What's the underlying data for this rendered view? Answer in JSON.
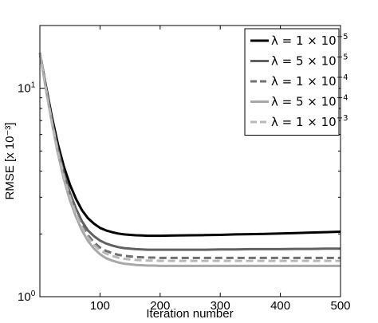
{
  "chart_data": {
    "type": "line",
    "xlabel": "Iteration number",
    "ylabel": "RMSE [x 10⁻³]",
    "xlim": [
      0,
      500
    ],
    "ylim": [
      1,
      20
    ],
    "yscale": "log",
    "grid": false,
    "legend_position": "top-right",
    "x_ticks": [
      100,
      200,
      300,
      400,
      500
    ],
    "x_tick_labels": [
      "100",
      "200",
      "300",
      "400",
      "500"
    ],
    "y_ticks": [
      1,
      10
    ],
    "y_tick_labels": [
      {
        "base": "10",
        "exp": "0"
      },
      {
        "base": "10",
        "exp": "1"
      }
    ],
    "x": [
      0,
      10,
      20,
      30,
      40,
      50,
      60,
      70,
      80,
      90,
      100,
      110,
      120,
      130,
      140,
      150,
      160,
      170,
      180,
      190,
      200,
      225,
      250,
      275,
      300,
      325,
      350,
      375,
      400,
      425,
      450,
      475,
      500
    ],
    "series": [
      {
        "name_base": "λ = 1 × 10",
        "name_exp": "−5",
        "color": "#000000",
        "dash": "",
        "values": [
          14.8,
          10.3,
          7.3,
          5.4,
          4.2,
          3.45,
          2.95,
          2.6,
          2.38,
          2.24,
          2.14,
          2.08,
          2.04,
          2.01,
          1.99,
          1.98,
          1.97,
          1.965,
          1.96,
          1.96,
          1.96,
          1.965,
          1.97,
          1.975,
          1.98,
          1.99,
          1.995,
          2.0,
          2.01,
          2.02,
          2.03,
          2.04,
          2.05
        ]
      },
      {
        "name_base": "λ = 5 × 10",
        "name_exp": "−5",
        "color": "#606060",
        "dash": "",
        "values": [
          14.8,
          10.1,
          7.0,
          5.1,
          3.9,
          3.15,
          2.65,
          2.3,
          2.08,
          1.95,
          1.86,
          1.8,
          1.76,
          1.73,
          1.71,
          1.7,
          1.69,
          1.685,
          1.68,
          1.68,
          1.68,
          1.68,
          1.68,
          1.68,
          1.685,
          1.685,
          1.69,
          1.69,
          1.69,
          1.695,
          1.695,
          1.7,
          1.7
        ]
      },
      {
        "name_base": "λ = 1 × 10",
        "name_exp": "−4",
        "color": "#707070",
        "dash": "9,5",
        "values": [
          14.8,
          10.0,
          6.9,
          5.0,
          3.8,
          3.05,
          2.55,
          2.2,
          1.97,
          1.82,
          1.72,
          1.66,
          1.62,
          1.59,
          1.57,
          1.56,
          1.55,
          1.545,
          1.54,
          1.54,
          1.535,
          1.535,
          1.535,
          1.535,
          1.535,
          1.535,
          1.535,
          1.535,
          1.535,
          1.535,
          1.535,
          1.535,
          1.535
        ]
      },
      {
        "name_base": "λ = 5 × 10",
        "name_exp": "−4",
        "color": "#a8a8a8",
        "dash": "",
        "values": [
          14.8,
          9.9,
          6.8,
          4.85,
          3.65,
          2.9,
          2.42,
          2.08,
          1.85,
          1.7,
          1.6,
          1.53,
          1.49,
          1.46,
          1.44,
          1.43,
          1.42,
          1.415,
          1.41,
          1.41,
          1.405,
          1.405,
          1.405,
          1.405,
          1.405,
          1.405,
          1.405,
          1.405,
          1.405,
          1.405,
          1.405,
          1.405,
          1.405
        ]
      },
      {
        "name_base": "λ = 1 × 10",
        "name_exp": "−3",
        "color": "#b8b8b8",
        "dash": "9,5",
        "values": [
          14.8,
          9.95,
          6.85,
          4.95,
          3.75,
          3.0,
          2.5,
          2.15,
          1.92,
          1.77,
          1.67,
          1.61,
          1.57,
          1.54,
          1.52,
          1.51,
          1.5,
          1.495,
          1.49,
          1.49,
          1.485,
          1.485,
          1.485,
          1.485,
          1.485,
          1.485,
          1.485,
          1.485,
          1.485,
          1.485,
          1.485,
          1.485,
          1.485
        ]
      }
    ]
  }
}
